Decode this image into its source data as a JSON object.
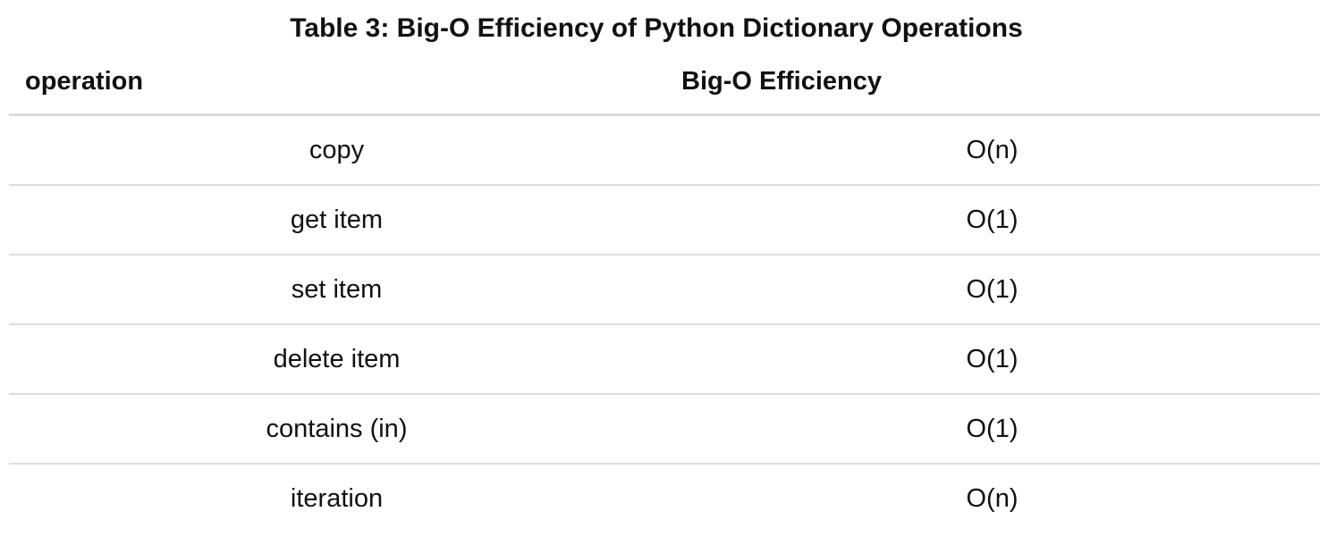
{
  "table": {
    "caption": "Table 3: Big-O Efficiency of Python Dictionary Operations",
    "headers": [
      "operation",
      "Big-O Efficiency"
    ],
    "rows": [
      {
        "operation": "copy",
        "efficiency": "O(n)"
      },
      {
        "operation": "get item",
        "efficiency": "O(1)"
      },
      {
        "operation": "set item",
        "efficiency": "O(1)"
      },
      {
        "operation": "delete item",
        "efficiency": "O(1)"
      },
      {
        "operation": "contains (in)",
        "efficiency": "O(1)"
      },
      {
        "operation": "iteration",
        "efficiency": "O(n)"
      }
    ]
  }
}
